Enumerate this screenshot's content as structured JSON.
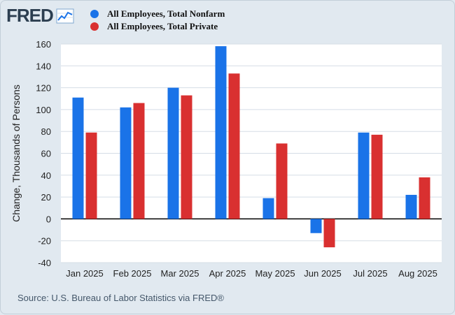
{
  "brand": {
    "logo_text": "FRED",
    "logo_icon": "line-graph-icon"
  },
  "legend": [
    {
      "name": "All Employees, Total Nonfarm",
      "color": "#1a73e8"
    },
    {
      "name": "All Employees, Total Private",
      "color": "#d93030"
    }
  ],
  "source": "Source: U.S. Bureau of Labor Statistics via FRED®",
  "chart_data": {
    "type": "bar",
    "title": "",
    "xlabel": "",
    "ylabel": "Change, Thousands of Persons",
    "categories": [
      "Jan 2025",
      "Feb 2025",
      "Mar 2025",
      "Apr 2025",
      "May 2025",
      "Jun 2025",
      "Jul 2025",
      "Aug 2025"
    ],
    "series": [
      {
        "name": "All Employees, Total Nonfarm",
        "color": "#1a73e8",
        "values": [
          111,
          102,
          120,
          158,
          19,
          -13,
          79,
          22
        ]
      },
      {
        "name": "All Employees, Total Private",
        "color": "#d93030",
        "values": [
          79,
          106,
          113,
          133,
          69,
          -26,
          77,
          38
        ]
      }
    ],
    "ylim": [
      -40,
      160
    ],
    "yticks": [
      160,
      140,
      120,
      100,
      80,
      60,
      40,
      20,
      0,
      -20,
      -40
    ],
    "grid": true,
    "legend_position": "top-left"
  }
}
